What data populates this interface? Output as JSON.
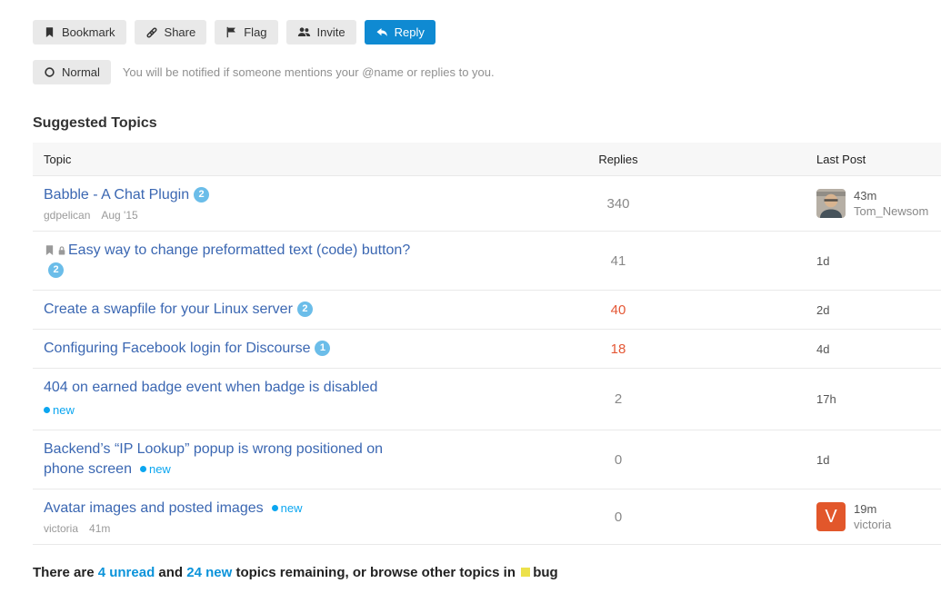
{
  "toolbar": {
    "buttons": [
      {
        "label": "Bookmark",
        "icon": "bookmark-icon",
        "primary": false
      },
      {
        "label": "Share",
        "icon": "link-icon",
        "primary": false
      },
      {
        "label": "Flag",
        "icon": "flag-icon",
        "primary": false
      },
      {
        "label": "Invite",
        "icon": "invite-icon",
        "primary": false
      },
      {
        "label": "Reply",
        "icon": "reply-icon",
        "primary": true
      }
    ]
  },
  "notification": {
    "level_label": "Normal",
    "level_icon": "circle-outline-icon",
    "description": "You will be notified if someone mentions your @name or replies to you."
  },
  "suggested_topics": {
    "title": "Suggested Topics",
    "columns": {
      "topic": "Topic",
      "replies": "Replies",
      "last_post": "Last Post"
    },
    "new_label": "new",
    "rows": [
      {
        "title": "Babble - A Chat Plugin",
        "badge": "2",
        "byline": {
          "user": "gdpelican",
          "date": "Aug '15"
        },
        "replies": "340",
        "replies_heat": false,
        "last_post": {
          "avatar": "photo",
          "time": "43m",
          "user": "Tom_Newsom"
        }
      },
      {
        "icons": [
          "bookmark",
          "lock"
        ],
        "title": "Easy way to change preformatted text (code) button?",
        "badge": "2",
        "replies": "41",
        "replies_heat": false,
        "last_post": {
          "time": "1d"
        }
      },
      {
        "title": "Create a swapfile for your Linux server",
        "badge": "2",
        "replies": "40",
        "replies_heat": true,
        "last_post": {
          "time": "2d"
        }
      },
      {
        "title": "Configuring Facebook login for Discourse",
        "badge": "1",
        "replies": "18",
        "replies_heat": true,
        "last_post": {
          "time": "4d"
        }
      },
      {
        "title": "404 on earned badge event when badge is disabled",
        "new": "below",
        "replies": "2",
        "replies_heat": false,
        "last_post": {
          "time": "17h"
        }
      },
      {
        "title": "Backend’s “IP Lookup” popup is wrong positioned on phone screen",
        "new": "inline",
        "replies": "0",
        "replies_heat": false,
        "last_post": {
          "time": "1d"
        }
      },
      {
        "title": "Avatar images and posted images",
        "new": "inline",
        "byline": {
          "user": "victoria",
          "date": "41m"
        },
        "replies": "0",
        "replies_heat": false,
        "last_post": {
          "avatar": "letter",
          "avatar_letter": "V",
          "avatar_color": "#e2572b",
          "time": "19m",
          "user": "victoria"
        }
      }
    ]
  },
  "footer": {
    "prefix": "There are ",
    "unread_link": "4 unread",
    "and_text": " and ",
    "new_link": "24 new",
    "middle": " topics remaining, or browse other topics in ",
    "category": {
      "name": "bug",
      "color": "#ece14b"
    }
  },
  "colors": {
    "accent_blue": "#0f8ad2",
    "topic_link": "#3b67b2",
    "new_badge": "#0ba6f0",
    "posts_badge_bg": "#6bbde9",
    "replies_heat": "#e45735",
    "replies_default": "#888888",
    "button_bg": "#e9e9e9",
    "row_border": "#e9e9e9",
    "header_row_bg": "#f7f7f7",
    "bug_category": "#ece14b",
    "victoria_avatar": "#e2572b"
  }
}
